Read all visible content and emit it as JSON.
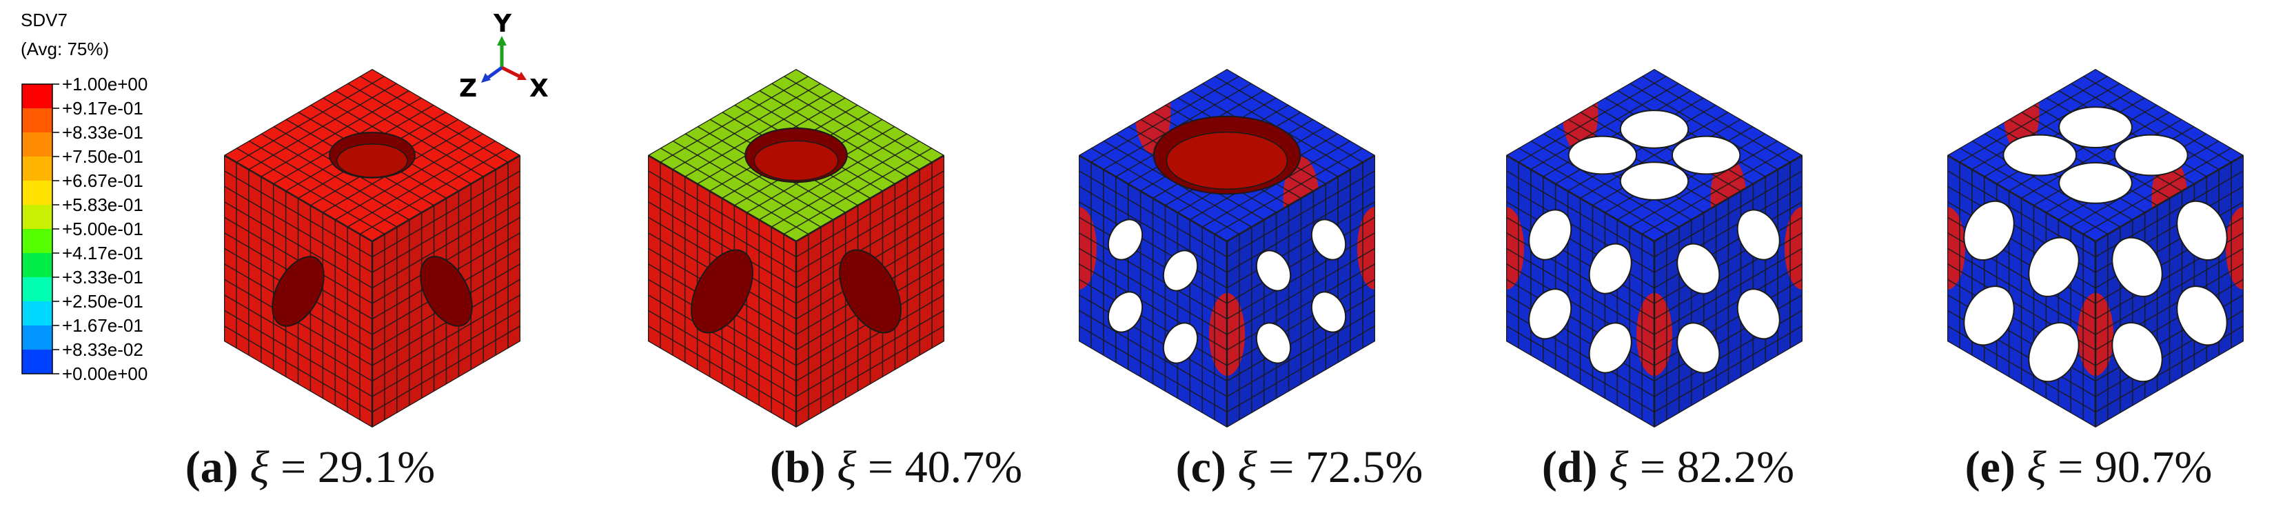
{
  "legend": {
    "title_line1": "SDV7",
    "title_line2": "(Avg: 75%)",
    "levels": [
      "+1.00e+00",
      "+9.17e-01",
      "+8.33e-01",
      "+7.50e-01",
      "+6.67e-01",
      "+5.83e-01",
      "+5.00e-01",
      "+4.17e-01",
      "+3.33e-01",
      "+2.50e-01",
      "+1.67e-01",
      "+8.33e-02",
      "+0.00e+00"
    ],
    "band_colors": [
      "#ff0000",
      "#ff5a00",
      "#ff8c00",
      "#ffb400",
      "#ffe100",
      "#c8f000",
      "#55ff00",
      "#00ee45",
      "#00ffb0",
      "#00d8ff",
      "#0095ff",
      "#0040ff"
    ]
  },
  "triad": {
    "y": "Y",
    "z": "Z",
    "x": "X"
  },
  "panels": [
    {
      "tag": "(a)",
      "symbol": "ξ",
      "equals": "=",
      "value": "29.1%",
      "hole_fraction": 0.291
    },
    {
      "tag": "(b)",
      "symbol": "ξ",
      "equals": "=",
      "value": "40.7%",
      "hole_fraction": 0.407
    },
    {
      "tag": "(c)",
      "symbol": "ξ",
      "equals": "=",
      "value": "72.5%",
      "hole_fraction": 0.725
    },
    {
      "tag": "(d)",
      "symbol": "ξ",
      "equals": "=",
      "value": "82.2%",
      "hole_fraction": 0.822
    },
    {
      "tag": "(e)",
      "symbol": "ξ",
      "equals": "=",
      "value": "90.7%",
      "hole_fraction": 0.907
    }
  ],
  "colors": {
    "mesh_line": "#1a1a1a",
    "hole_inner": "#7a0000"
  }
}
